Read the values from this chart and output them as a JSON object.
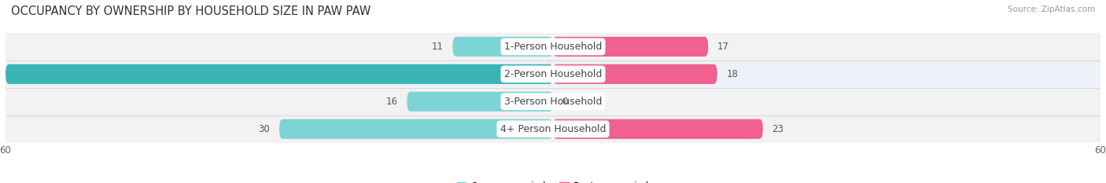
{
  "title": "OCCUPANCY BY OWNERSHIP BY HOUSEHOLD SIZE IN PAW PAW",
  "source": "Source: ZipAtlas.com",
  "categories": [
    "1-Person Household",
    "2-Person Household",
    "3-Person Household",
    "4+ Person Household"
  ],
  "owner_values": [
    11,
    60,
    16,
    30
  ],
  "renter_values": [
    17,
    18,
    0,
    23
  ],
  "owner_color_light": "#7dd4d4",
  "owner_color_dark": "#3ab5b5",
  "renter_color_light": "#f9a0ba",
  "renter_color_dark": "#f06090",
  "row_colors": [
    "#f0f0f0",
    "#e0e8f8",
    "#f0f0f0",
    "#f0f0f0"
  ],
  "sep_color": "#d0d0d0",
  "axis_max": 60,
  "bar_height": 0.72,
  "title_fontsize": 10.5,
  "label_fontsize": 9,
  "value_fontsize": 8.5,
  "tick_fontsize": 8.5,
  "legend_fontsize": 8.5,
  "source_fontsize": 7.5
}
